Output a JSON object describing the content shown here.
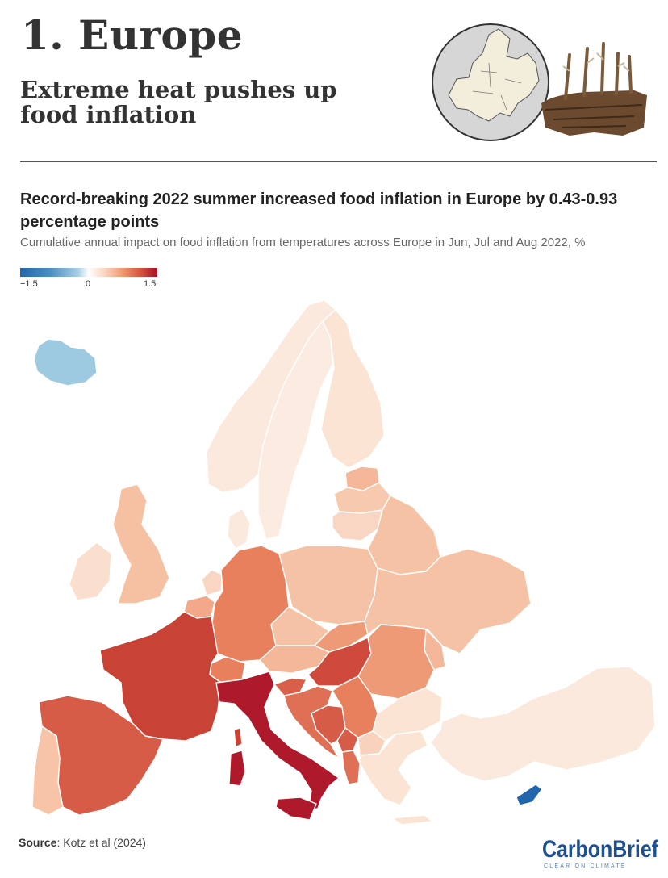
{
  "header": {
    "section_number": "1. Europe",
    "headline": "Extreme heat pushes up food inflation"
  },
  "chart": {
    "title": "Record-breaking 2022 summer increased food inflation in Europe by 0.43-0.93 percentage points",
    "subtitle": "Cumulative annual impact on food inflation from temperatures across Europe in Jun, Jul and Aug 2022, %"
  },
  "legend": {
    "min_label": "−1.5",
    "mid_label": "0",
    "max_label": "1.5",
    "colors": [
      "#2166ac",
      "#ffffff",
      "#a50f26"
    ]
  },
  "chart_data": {
    "type": "choropleth",
    "region": "Europe",
    "color_scale": {
      "min": -1.5,
      "max": 1.5,
      "center": 0
    },
    "approx_values": [
      {
        "name": "Iceland",
        "value": -0.6
      },
      {
        "name": "Cyprus",
        "value": -1.3
      },
      {
        "name": "Norway",
        "value": 0.05
      },
      {
        "name": "Sweden",
        "value": 0.1
      },
      {
        "name": "Finland",
        "value": 0.15
      },
      {
        "name": "Estonia",
        "value": 0.3
      },
      {
        "name": "Latvia",
        "value": 0.25
      },
      {
        "name": "Lithuania",
        "value": 0.2
      },
      {
        "name": "Denmark",
        "value": 0.1
      },
      {
        "name": "United Kingdom",
        "value": 0.35
      },
      {
        "name": "Ireland",
        "value": 0.15
      },
      {
        "name": "Netherlands",
        "value": 0.2
      },
      {
        "name": "Belgium",
        "value": 0.4
      },
      {
        "name": "Luxembourg",
        "value": 0.4
      },
      {
        "name": "France",
        "value": 1.1
      },
      {
        "name": "Spain",
        "value": 0.95
      },
      {
        "name": "Portugal",
        "value": 0.3
      },
      {
        "name": "Germany",
        "value": 0.7
      },
      {
        "name": "Poland",
        "value": 0.35
      },
      {
        "name": "Czechia",
        "value": 0.35
      },
      {
        "name": "Slovakia",
        "value": 0.55
      },
      {
        "name": "Austria",
        "value": 0.4
      },
      {
        "name": "Switzerland",
        "value": 0.7
      },
      {
        "name": "Italy",
        "value": 1.4
      },
      {
        "name": "Slovenia",
        "value": 0.8
      },
      {
        "name": "Croatia",
        "value": 0.75
      },
      {
        "name": "Bosnia and Herzegovina",
        "value": 0.85
      },
      {
        "name": "Serbia",
        "value": 0.6
      },
      {
        "name": "Montenegro",
        "value": 0.8
      },
      {
        "name": "Albania",
        "value": 0.7
      },
      {
        "name": "North Macedonia",
        "value": 0.3
      },
      {
        "name": "Hungary",
        "value": 1.0
      },
      {
        "name": "Romania",
        "value": 0.5
      },
      {
        "name": "Moldova",
        "value": 0.45
      },
      {
        "name": "Bulgaria",
        "value": 0.15
      },
      {
        "name": "Greece",
        "value": 0.15
      },
      {
        "name": "Turkey",
        "value": 0.1
      },
      {
        "name": "Belarus",
        "value": 0.3
      },
      {
        "name": "Ukraine",
        "value": 0.3
      }
    ]
  },
  "source": {
    "label": "Source",
    "text": ": Kotz et al (2024)"
  },
  "logo": {
    "name": "CarbonBrief",
    "tagline": "CLEAR ON CLIMATE",
    "color": "#1d4f91"
  }
}
